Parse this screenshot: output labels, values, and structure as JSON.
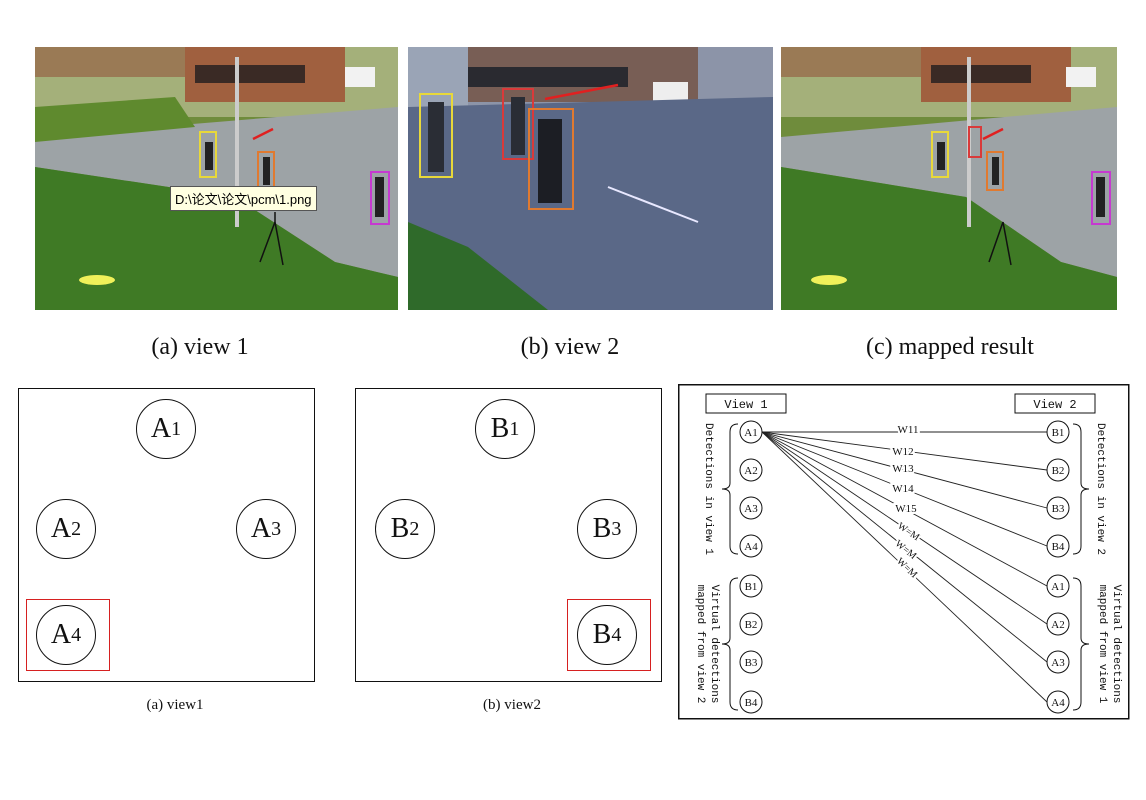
{
  "photos": {
    "tooltip": "D:\\论文\\论文\\pcm\\1.png",
    "captions": [
      "(a) view 1",
      "(b) view 2",
      "(c) mapped result"
    ],
    "colors": {
      "box_yellow": "#e8d83a",
      "box_red": "#d93a3a",
      "box_orange": "#e07a30",
      "box_magenta": "#c63ad0",
      "arrow": "#e02020"
    }
  },
  "layout_views": {
    "view1": {
      "circles": [
        {
          "letter": "A",
          "sub": "1"
        },
        {
          "letter": "A",
          "sub": "2"
        },
        {
          "letter": "A",
          "sub": "3"
        },
        {
          "letter": "A",
          "sub": "4"
        }
      ],
      "caption": "(a) view1"
    },
    "view2": {
      "circles": [
        {
          "letter": "B",
          "sub": "1"
        },
        {
          "letter": "B",
          "sub": "2"
        },
        {
          "letter": "B",
          "sub": "3"
        },
        {
          "letter": "B",
          "sub": "4"
        }
      ],
      "caption": "(b) view2"
    },
    "highlight_color": "#d62020"
  },
  "graph": {
    "view1_label": "View 1",
    "view2_label": "View 2",
    "left_top_brace": "Detections in view 1",
    "left_bottom_brace": "Virtual detections mapped from view 2",
    "right_top_brace": "Detections in view 2",
    "right_bottom_brace": "Virtual detections mapped from view 1",
    "left_nodes": [
      "A1",
      "A2",
      "A3",
      "A4",
      "B1",
      "B2",
      "B3",
      "B4"
    ],
    "right_nodes": [
      "B1",
      "B2",
      "B3",
      "B4",
      "A1",
      "A2",
      "A3",
      "A4"
    ],
    "edge_labels": [
      "W11",
      "W12",
      "W13",
      "W14",
      "W15",
      "W=M",
      "W=M",
      "W=M"
    ]
  }
}
